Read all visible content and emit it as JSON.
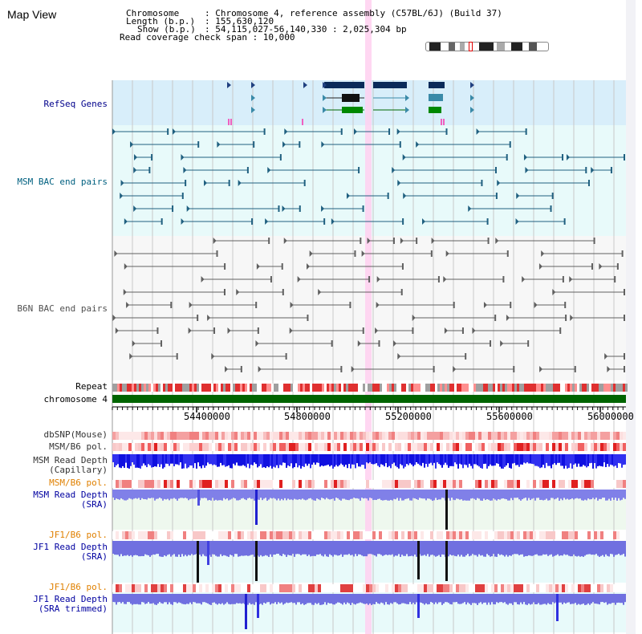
{
  "title": "Map View",
  "header": {
    "chromosome_key": "Chromosome",
    "chromosome_val": ": Chromosome 4, reference assembly (C57BL/6J) (Build 37)",
    "length_key": "Length (b.p.)",
    "length_val": ": 155,630,120",
    "show_key": "Show (b.p.)",
    "show_val": ": 54,115,027-56,140,330 : 2,025,304 bp",
    "coverage": "Read coverage check span : 10,000"
  },
  "tracks": {
    "refseq": "RefSeq Genes",
    "msm_bac": "MSM BAC end pairs",
    "b6n_bac": "B6N BAC end pairs",
    "repeat": "Repeat",
    "chromosome": "chromosome 4",
    "dbsnp": "dbSNP(Mouse)",
    "msm_b6_pol": "MSM/B6 pol.",
    "msm_depth_cap_1": "MSM Read Depth",
    "msm_depth_cap_2": "(Capillary)",
    "msm_b6_pol_2": "MSM/B6 pol.",
    "msm_depth_sra_1": "MSM Read Depth",
    "msm_depth_sra_2": "(SRA)",
    "jf1_b6_pol": "JF1/B6 pol.",
    "jf1_depth_sra_1": "JF1 Read Depth",
    "jf1_depth_sra_2": "(SRA)",
    "jf1_b6_pol_2": "JF1/B6 pol.",
    "jf1_depth_trim_1": "JF1 Read Depth",
    "jf1_depth_trim_2": "(SRA trimmed)"
  },
  "axis": {
    "ticks": [
      "54400000",
      "54800000",
      "55200000",
      "55600000",
      "56000000"
    ]
  },
  "colors": {
    "refseq_label": "#00008b",
    "msm_label": "#006080",
    "b6n_label": "#505050",
    "orange_label": "#e08000",
    "blue_label": "#0000a0",
    "chromosome_bar": "#006400",
    "highlight": "#ffd0f0"
  }
}
